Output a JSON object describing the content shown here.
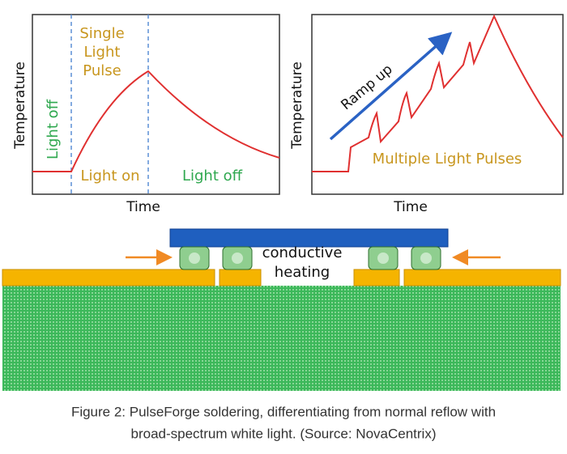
{
  "left_chart": {
    "y_label": "Temperature",
    "x_label": "Time",
    "pulse_label": [
      "Single",
      "Light",
      "Pulse"
    ],
    "before_label": "Light off",
    "on_label": "Light on",
    "after_label": "Light off"
  },
  "right_chart": {
    "y_label": "Temperature",
    "x_label": "Time",
    "arrow_label": "Ramp up",
    "pulses_label": "Multiple Light Pulses"
  },
  "diagram": {
    "heating_label": [
      "conductive",
      "heating"
    ]
  },
  "caption": [
    "Figure 2: PulseForge soldering, differentiating from normal reflow with",
    "broad-spectrum white light. (Source: NovaCentrix)"
  ]
}
